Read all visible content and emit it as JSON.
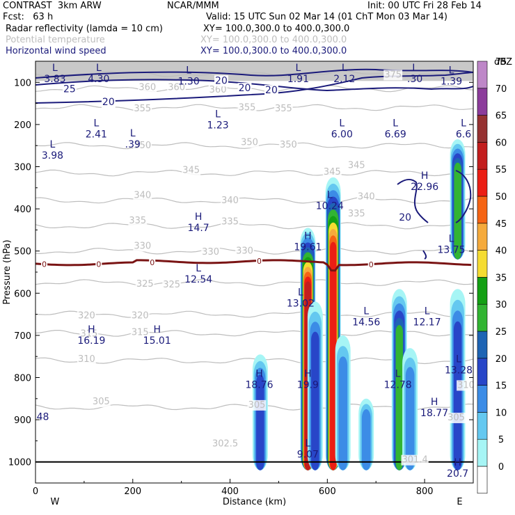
{
  "header": {
    "title": "CONTRAST  3km ARW",
    "model": "NCAR/MMM",
    "init": "Init: 00 UTC Fri 28 Feb 14",
    "fcst": "Fcst:   63 h",
    "valid": "Valid: 15 UTC Sun 02 Mar 14 (01 ChT Mon 03 Mar 14)",
    "fields": [
      {
        "name": "Radar reflectivity (lamda = 10 cm)",
        "xy": "XY= 100.0,300.0 to 400.0,300.0",
        "color": "#000000"
      },
      {
        "name": "Potential temperature",
        "xy": "XY= 100.0,300.0 to 400.0,300.0",
        "color": "#bdbdbd"
      },
      {
        "name": "Horizontal wind speed",
        "xy": "XY= 100.0,300.0 to 400.0,300.0",
        "color": "#1a1a7a"
      }
    ]
  },
  "chart_data": {
    "type": "heatmap",
    "xlabel": "Distance (km)",
    "ylabel": "Pressure (hPa)",
    "xlim": [
      0,
      900
    ],
    "ylim": [
      1050,
      50
    ],
    "x_ticks": [
      "0",
      "200",
      "400",
      "600",
      "800"
    ],
    "y_ticks": [
      "100",
      "200",
      "300",
      "400",
      "500",
      "600",
      "700",
      "800",
      "900",
      "1000"
    ],
    "x_end_labels": [
      "W",
      "E"
    ],
    "colorbar": {
      "unit": "dBZ",
      "levels": [
        "0",
        "5",
        "10",
        "15",
        "20",
        "25",
        "30",
        "35",
        "40",
        "45",
        "50",
        "55",
        "60",
        "65",
        "70",
        "75"
      ],
      "colors": [
        "#ffffff",
        "#a6f5f5",
        "#64c8f0",
        "#3c8ce6",
        "#2846c8",
        "#1e64b4",
        "#32b432",
        "#14a014",
        "#f5dc32",
        "#f5aa3c",
        "#f56414",
        "#eb1e14",
        "#c31e1e",
        "#963232",
        "#8c3c9b",
        "#be87c8"
      ]
    },
    "reflectivity_cells": [
      {
        "x": 462,
        "p_top": 745,
        "p_bot": 1000,
        "max_dbz": 20
      },
      {
        "x": 560,
        "p_top": 445,
        "p_bot": 1000,
        "max_dbz": 60
      },
      {
        "x": 575,
        "p_top": 620,
        "p_bot": 1000,
        "max_dbz": 20
      },
      {
        "x": 612,
        "p_top": 325,
        "p_bot": 1000,
        "max_dbz": 55
      },
      {
        "x": 632,
        "p_top": 700,
        "p_bot": 1000,
        "max_dbz": 15
      },
      {
        "x": 680,
        "p_top": 850,
        "p_bot": 1000,
        "max_dbz": 15
      },
      {
        "x": 748,
        "p_top": 590,
        "p_bot": 1000,
        "max_dbz": 30
      },
      {
        "x": 770,
        "p_top": 730,
        "p_bot": 1000,
        "max_dbz": 15
      },
      {
        "x": 868,
        "p_top": 235,
        "p_bot": 500,
        "max_dbz": 30
      },
      {
        "x": 868,
        "p_top": 590,
        "p_bot": 1000,
        "max_dbz": 20
      }
    ],
    "theta_contours": [
      {
        "value": 375,
        "p": 80
      },
      {
        "value": 360,
        "p": 115
      },
      {
        "value": 355,
        "p": 160
      },
      {
        "value": 350,
        "p": 250
      },
      {
        "value": 345,
        "p": 315
      },
      {
        "value": 340,
        "p": 380
      },
      {
        "value": 335,
        "p": 440
      },
      {
        "value": 330,
        "p": 500
      },
      {
        "value": 325,
        "p": 575
      },
      {
        "value": 320,
        "p": 650
      },
      {
        "value": 315,
        "p": 695
      },
      {
        "value": 310,
        "p": 760
      },
      {
        "value": 305,
        "p": 870
      }
    ],
    "theta_labels": [
      {
        "text": "375",
        "x": 735,
        "p": 82
      },
      {
        "text": "360",
        "x": 230,
        "p": 112
      },
      {
        "text": "360",
        "x": 290,
        "p": 112
      },
      {
        "text": "360",
        "x": 375,
        "p": 118
      },
      {
        "text": "355",
        "x": 220,
        "p": 162
      },
      {
        "text": "355",
        "x": 435,
        "p": 160
      },
      {
        "text": "355",
        "x": 510,
        "p": 162
      },
      {
        "text": "350",
        "x": 220,
        "p": 250
      },
      {
        "text": "350",
        "x": 440,
        "p": 242
      },
      {
        "text": "350",
        "x": 520,
        "p": 248
      },
      {
        "text": "345",
        "x": 320,
        "p": 308
      },
      {
        "text": "345",
        "x": 610,
        "p": 312
      },
      {
        "text": "345",
        "x": 660,
        "p": 297
      },
      {
        "text": "340",
        "x": 220,
        "p": 368
      },
      {
        "text": "340",
        "x": 400,
        "p": 380
      },
      {
        "text": "340",
        "x": 680,
        "p": 371
      },
      {
        "text": "335",
        "x": 210,
        "p": 428
      },
      {
        "text": "335",
        "x": 400,
        "p": 430
      },
      {
        "text": "335",
        "x": 660,
        "p": 411
      },
      {
        "text": "330",
        "x": 220,
        "p": 488
      },
      {
        "text": "330",
        "x": 360,
        "p": 502
      },
      {
        "text": "330",
        "x": 430,
        "p": 500
      },
      {
        "text": "325",
        "x": 225,
        "p": 578
      },
      {
        "text": "325",
        "x": 280,
        "p": 580
      },
      {
        "text": "320",
        "x": 105,
        "p": 653
      },
      {
        "text": "320",
        "x": 215,
        "p": 653
      },
      {
        "text": "315",
        "x": 110,
        "p": 696
      },
      {
        "text": "315",
        "x": 215,
        "p": 693
      },
      {
        "text": "310",
        "x": 105,
        "p": 756
      },
      {
        "text": "310",
        "x": 885,
        "p": 818
      },
      {
        "text": "305",
        "x": 135,
        "p": 857
      },
      {
        "text": "305",
        "x": 455,
        "p": 865
      },
      {
        "text": "305",
        "x": 865,
        "p": 895
      },
      {
        "text": "302.5",
        "x": 390,
        "p": 957
      },
      {
        "text": "301.4",
        "x": 780,
        "p": 995
      }
    ],
    "wind_labels": [
      {
        "text": "20",
        "x": 382,
        "p": 95
      },
      {
        "text": "25",
        "x": 70,
        "p": 115
      },
      {
        "text": "20",
        "x": 430,
        "p": 113
      },
      {
        "text": "20",
        "x": 485,
        "p": 118
      },
      {
        "text": "20",
        "x": 150,
        "p": 146
      },
      {
        "text": "20",
        "x": 760,
        "p": 420
      },
      {
        "text": "48",
        "x": 15,
        "p": 892
      }
    ],
    "zero_line_labels": [
      {
        "text": "0",
        "x": 18,
        "p": 531
      },
      {
        "text": "0",
        "x": 130,
        "p": 531
      },
      {
        "text": "0",
        "x": 240,
        "p": 527
      },
      {
        "text": "0",
        "x": 460,
        "p": 524
      },
      {
        "text": "0",
        "x": 690,
        "p": 532
      }
    ],
    "extrema": [
      {
        "type": "L",
        "value": "3.83",
        "x": 40,
        "p": 90,
        "color": "#1a1a7a"
      },
      {
        "type": "L",
        "value": "4.30",
        "x": 130,
        "p": 90,
        "color": "#1a1a7a"
      },
      {
        "type": "L",
        "value": "1.30",
        "x": 315,
        "p": 95,
        "color": "#1a1a7a"
      },
      {
        "type": "L",
        "value": "1.91",
        "x": 540,
        "p": 90,
        "color": "#1a1a7a"
      },
      {
        "type": "L",
        "value": "2.12",
        "x": 635,
        "p": 90,
        "color": "#1a1a7a"
      },
      {
        "type": "L",
        "value": ".30",
        "x": 780,
        "p": 90,
        "color": "#1a1a7a"
      },
      {
        "type": "L",
        "value": "1.39",
        "x": 855,
        "p": 95,
        "color": "#1a1a7a"
      },
      {
        "type": "L",
        "value": "1.23",
        "x": 375,
        "p": 199,
        "color": "#1a1a7a"
      },
      {
        "type": "L",
        "value": "2.41",
        "x": 125,
        "p": 221,
        "color": "#1a1a7a"
      },
      {
        "type": "L",
        "value": ".39",
        "x": 200,
        "p": 245,
        "color": "#1a1a7a"
      },
      {
        "type": "L",
        "value": "3.98",
        "x": 35,
        "p": 271,
        "color": "#1a1a7a"
      },
      {
        "type": "L",
        "value": "6.00",
        "x": 630,
        "p": 221,
        "color": "#1a1a7a"
      },
      {
        "type": "L",
        "value": "6.69",
        "x": 740,
        "p": 221,
        "color": "#1a1a7a"
      },
      {
        "type": "L",
        "value": "6.6",
        "x": 880,
        "p": 221,
        "color": "#1a1a7a"
      },
      {
        "type": "H",
        "value": "22.96",
        "x": 800,
        "p": 345,
        "color": "#1a1a7a"
      },
      {
        "type": "L",
        "value": "10.24",
        "x": 605,
        "p": 391,
        "color": "#1a1a7a"
      },
      {
        "type": "H",
        "value": "14.7",
        "x": 335,
        "p": 443,
        "color": "#1a1a7a"
      },
      {
        "type": "H",
        "value": "19.61",
        "x": 560,
        "p": 488,
        "color": "#1a1a7a"
      },
      {
        "type": "L",
        "value": "13.75",
        "x": 855,
        "p": 495,
        "color": "#1a1a7a"
      },
      {
        "type": "L",
        "value": "12.54",
        "x": 335,
        "p": 565,
        "color": "#1a1a7a"
      },
      {
        "type": "L",
        "value": "13.02",
        "x": 545,
        "p": 622,
        "color": "#1a1a7a"
      },
      {
        "type": "L",
        "value": "14.56",
        "x": 680,
        "p": 666,
        "color": "#1a1a7a"
      },
      {
        "type": "L",
        "value": "12.17",
        "x": 805,
        "p": 666,
        "color": "#1a1a7a"
      },
      {
        "type": "H",
        "value": "16.19",
        "x": 115,
        "p": 710,
        "color": "#1a1a7a"
      },
      {
        "type": "H",
        "value": "15.01",
        "x": 250,
        "p": 710,
        "color": "#1a1a7a"
      },
      {
        "type": "L",
        "value": "13.28",
        "x": 870,
        "p": 780,
        "color": "#1a1a7a"
      },
      {
        "type": "H",
        "value": "18.76",
        "x": 460,
        "p": 815,
        "color": "#1a1a7a"
      },
      {
        "type": "H",
        "value": "19.9",
        "x": 560,
        "p": 815,
        "color": "#1a1a7a"
      },
      {
        "type": "L",
        "value": "12.78",
        "x": 745,
        "p": 815,
        "color": "#1a1a7a"
      },
      {
        "type": "H",
        "value": "18.77",
        "x": 820,
        "p": 882,
        "color": "#1a1a7a"
      },
      {
        "type": "L",
        "value": "9.07",
        "x": 560,
        "p": 980,
        "color": "#1a1a7a"
      },
      {
        "type": "H",
        "value": "20.7",
        "x": 868,
        "p": 1025,
        "color": "#1a1a7a"
      }
    ],
    "contour_colors": {
      "theta": "#bdbdbd",
      "wind": "#1a1a7a",
      "zero": "#7a1414",
      "ground": "#000000",
      "top_band": "#c8c8c8"
    }
  }
}
